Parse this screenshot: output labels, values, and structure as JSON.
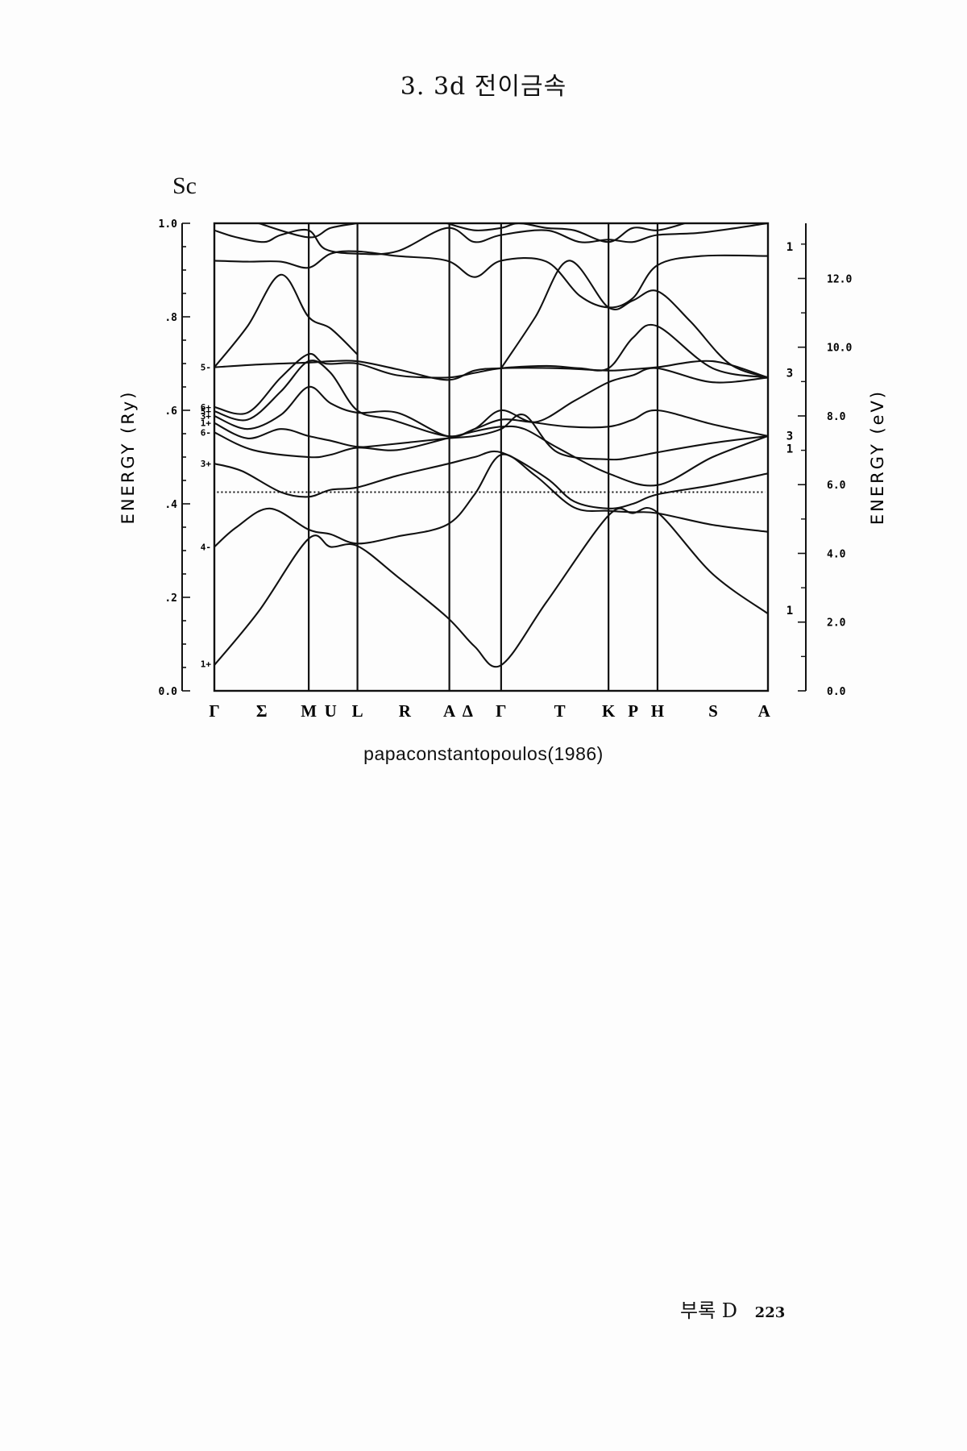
{
  "page_header": "3. 3d 전이금속",
  "element_label": "Sc",
  "credit": "papaconstantopoulos(1986)",
  "footer": {
    "label": "부록 D",
    "page_number": "223"
  },
  "chart_data": {
    "type": "line",
    "title": "",
    "xlabel": "",
    "ylabel_left": "ENERGY (Ry)",
    "ylabel_right": "ENERGY (eV)",
    "ylim_left": [
      0.0,
      1.0
    ],
    "left_ticks": [
      {
        "value": 0.0,
        "label": "0.0"
      },
      {
        "value": 0.2,
        "label": ".2"
      },
      {
        "value": 0.4,
        "label": ".4"
      },
      {
        "value": 0.6,
        "label": ".6"
      },
      {
        "value": 0.8,
        "label": ".8"
      },
      {
        "value": 1.0,
        "label": "1.0"
      }
    ],
    "right_ticks": [
      {
        "value": 0.0,
        "label": "0.0"
      },
      {
        "value": 2.0,
        "label": "2.0"
      },
      {
        "value": 4.0,
        "label": "4.0"
      },
      {
        "value": 6.0,
        "label": "6.0"
      },
      {
        "value": 8.0,
        "label": "8.0"
      },
      {
        "value": 10.0,
        "label": "10.0"
      },
      {
        "value": 12.0,
        "label": "12.0"
      }
    ],
    "right_minor_ticks_ev": [
      1,
      3,
      5,
      7,
      9,
      11,
      13
    ],
    "ry_to_ev": 13.6057,
    "fermi_level_ry": 0.425,
    "k_points": [
      {
        "label": "Γ",
        "pos": 0.0
      },
      {
        "label": "Σ",
        "pos": 0.0855
      },
      {
        "label": "M",
        "pos": 0.1705
      },
      {
        "label": "U",
        "pos": 0.21
      },
      {
        "label": "L",
        "pos": 0.2585
      },
      {
        "label": "R",
        "pos": 0.344
      },
      {
        "label": "A",
        "pos": 0.4245
      },
      {
        "label": "Δ",
        "pos": 0.4575
      },
      {
        "label": "Γ",
        "pos": 0.518
      },
      {
        "label": "T",
        "pos": 0.624
      },
      {
        "label": "K",
        "pos": 0.712
      },
      {
        "label": "P",
        "pos": 0.7565
      },
      {
        "label": "H",
        "pos": 0.8005
      },
      {
        "label": "S",
        "pos": 0.901
      },
      {
        "label": "A",
        "pos": 0.993
      }
    ],
    "vertical_lines": [
      0.1705,
      0.2585,
      0.4245,
      0.518,
      0.712,
      0.8005
    ],
    "gamma_state_labels": [
      {
        "label": "5-",
        "value": 0.692
      },
      {
        "label": "6+",
        "value": 0.607
      },
      {
        "label": "5+",
        "value": 0.598
      },
      {
        "label": "3+",
        "value": 0.588
      },
      {
        "label": "1+",
        "value": 0.573
      },
      {
        "label": "6-",
        "value": 0.553
      },
      {
        "label": "3+",
        "value": 0.486
      },
      {
        "label": "4-",
        "value": 0.308
      },
      {
        "label": "1+",
        "value": 0.058
      }
    ],
    "right_degeneracy_labels": [
      {
        "label": "1",
        "value": 0.95
      },
      {
        "label": "3",
        "value": 0.68
      },
      {
        "label": "3",
        "value": 0.546
      },
      {
        "label": "1",
        "value": 0.518
      },
      {
        "label": "1",
        "value": 0.172
      }
    ],
    "series": [
      {
        "x": [
          0.0,
          0.08,
          0.17,
          0.21,
          0.258,
          0.33,
          0.42,
          0.47,
          0.518,
          0.6,
          0.712,
          0.756,
          0.8,
          0.9,
          1.0
        ],
        "y": [
          0.055,
          0.17,
          0.325,
          0.308,
          0.31,
          0.245,
          0.158,
          0.095,
          0.055,
          0.19,
          0.375,
          0.38,
          0.382,
          0.25,
          0.165
        ]
      },
      {
        "x": [
          0.0,
          0.04,
          0.1,
          0.17,
          0.21,
          0.258,
          0.33,
          0.42,
          0.47,
          0.518,
          0.58,
          0.65,
          0.712,
          0.756,
          0.8,
          0.9,
          1.0
        ],
        "y": [
          0.308,
          0.35,
          0.39,
          0.345,
          0.335,
          0.315,
          0.33,
          0.355,
          0.42,
          0.505,
          0.46,
          0.392,
          0.385,
          0.382,
          0.38,
          0.355,
          0.34
        ]
      },
      {
        "x": [
          0.0,
          0.05,
          0.12,
          0.17,
          0.21,
          0.258,
          0.33,
          0.42,
          0.47,
          0.518,
          0.6,
          0.65,
          0.712,
          0.756,
          0.8,
          0.9,
          1.0
        ],
        "y": [
          0.486,
          0.47,
          0.425,
          0.415,
          0.43,
          0.435,
          0.46,
          0.485,
          0.5,
          0.51,
          0.455,
          0.405,
          0.39,
          0.4,
          0.42,
          0.44,
          0.465
        ]
      },
      {
        "x": [
          0.0,
          0.07,
          0.17,
          0.21,
          0.258,
          0.33,
          0.42,
          0.47,
          0.518,
          0.56,
          0.62,
          0.712,
          0.8,
          0.9,
          1.0
        ],
        "y": [
          0.553,
          0.515,
          0.5,
          0.505,
          0.52,
          0.515,
          0.54,
          0.555,
          0.565,
          0.56,
          0.52,
          0.465,
          0.44,
          0.5,
          0.545
        ]
      },
      {
        "x": [
          0.0,
          0.06,
          0.12,
          0.17,
          0.21,
          0.258,
          0.3,
          0.42,
          0.47,
          0.518,
          0.56,
          0.62,
          0.712,
          0.756,
          0.8,
          0.9,
          1.0
        ],
        "y": [
          0.573,
          0.54,
          0.56,
          0.545,
          0.535,
          0.522,
          0.525,
          0.54,
          0.545,
          0.56,
          0.59,
          0.51,
          0.495,
          0.5,
          0.51,
          0.53,
          0.545
        ]
      },
      {
        "x": [
          0.0,
          0.06,
          0.12,
          0.17,
          0.21,
          0.258,
          0.33,
          0.42,
          0.47,
          0.518,
          0.57,
          0.64,
          0.712,
          0.756,
          0.8,
          0.9,
          1.0
        ],
        "y": [
          0.588,
          0.56,
          0.59,
          0.65,
          0.615,
          0.595,
          0.595,
          0.545,
          0.56,
          0.58,
          0.575,
          0.565,
          0.565,
          0.58,
          0.6,
          0.57,
          0.545
        ]
      },
      {
        "x": [
          0.0,
          0.06,
          0.12,
          0.17,
          0.21,
          0.258,
          0.32,
          0.42,
          0.47,
          0.518,
          0.58,
          0.65,
          0.712,
          0.756,
          0.8,
          0.9,
          1.0
        ],
        "y": [
          0.598,
          0.58,
          0.64,
          0.705,
          0.68,
          0.6,
          0.58,
          0.545,
          0.56,
          0.6,
          0.575,
          0.62,
          0.66,
          0.675,
          0.69,
          0.66,
          0.67
        ]
      },
      {
        "x": [
          0.0,
          0.06,
          0.12,
          0.17,
          0.2,
          0.258,
          0.33,
          0.42,
          0.47,
          0.518,
          0.6,
          0.66,
          0.712,
          0.756,
          0.8,
          0.9,
          1.0
        ],
        "y": [
          0.607,
          0.595,
          0.67,
          0.72,
          0.7,
          0.7,
          0.675,
          0.67,
          0.68,
          0.69,
          0.695,
          0.69,
          0.69,
          0.755,
          0.78,
          0.69,
          0.67
        ]
      },
      {
        "x": [
          0.0,
          0.08,
          0.17,
          0.21,
          0.258,
          0.33,
          0.42,
          0.47,
          0.518,
          0.62,
          0.712,
          0.756,
          0.8,
          0.9,
          1.0
        ],
        "y": [
          0.692,
          0.698,
          0.702,
          0.705,
          0.705,
          0.688,
          0.665,
          0.685,
          0.69,
          0.69,
          0.685,
          0.688,
          0.692,
          0.705,
          0.67
        ]
      },
      {
        "x": [
          0.0,
          0.06,
          0.12,
          0.17,
          0.21,
          0.258
        ],
        "y": [
          0.692,
          0.78,
          0.89,
          0.8,
          0.775,
          0.72
        ]
      },
      {
        "x": [
          0.518,
          0.58,
          0.64,
          0.712,
          0.756,
          0.8,
          0.86,
          0.93,
          1.0
        ],
        "y": [
          0.69,
          0.8,
          0.92,
          0.82,
          0.835,
          0.855,
          0.79,
          0.7,
          0.67
        ]
      },
      {
        "x": [
          0.0,
          0.06,
          0.12,
          0.17,
          0.21,
          0.258,
          0.33,
          0.42,
          0.47,
          0.518,
          0.6,
          0.66,
          0.712,
          0.756,
          0.8,
          0.88,
          1.0
        ],
        "y": [
          0.92,
          0.918,
          0.918,
          0.905,
          0.935,
          0.94,
          0.93,
          0.92,
          0.885,
          0.92,
          0.918,
          0.845,
          0.82,
          0.84,
          0.91,
          0.93,
          0.93
        ]
      },
      {
        "x": [
          0.0,
          0.04,
          0.09,
          0.12,
          0.17,
          0.2,
          0.258,
          0.33,
          0.42,
          0.47,
          0.518,
          0.6,
          0.66,
          0.712,
          0.756,
          0.8,
          0.88,
          1.0
        ],
        "y": [
          0.985,
          0.97,
          0.96,
          0.975,
          0.985,
          0.945,
          0.935,
          0.94,
          0.99,
          0.96,
          0.975,
          0.985,
          0.96,
          0.965,
          0.96,
          0.975,
          0.98,
          1.0
        ]
      },
      {
        "x": [
          0.08,
          0.17,
          0.21,
          0.258
        ],
        "y": [
          1.0,
          0.97,
          0.99,
          1.0
        ]
      },
      {
        "x": [
          0.42,
          0.47,
          0.518,
          0.55,
          0.6,
          0.65,
          0.712,
          0.756,
          0.8,
          0.85
        ],
        "y": [
          1.0,
          0.985,
          0.99,
          1.0,
          0.99,
          0.985,
          0.96,
          0.99,
          0.985,
          1.0
        ]
      }
    ]
  }
}
